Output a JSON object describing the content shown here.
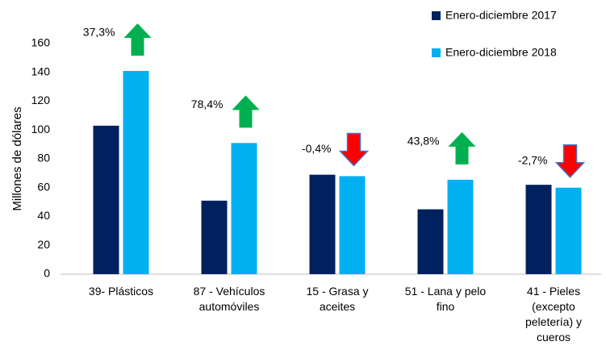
{
  "chart_data": {
    "type": "bar",
    "y_label": "Millones de dólares",
    "categories": [
      "39- Plásticos",
      "87 - Vehículos automóviles",
      "15 - Grasa y aceites",
      "51 - Lana y pelo fino",
      "41 - Pieles (excepto peletería) y cueros"
    ],
    "series": [
      {
        "name": "Enero-diciembre 2017",
        "color": "#002060",
        "values": [
          103,
          51,
          69,
          45,
          62
        ]
      },
      {
        "name": "Enero-diciembre 2018",
        "color": "#00b0f0",
        "values": [
          141,
          91,
          68,
          65.5,
          60
        ]
      }
    ],
    "annotations": [
      {
        "text": "37,3%",
        "arrow": "up",
        "color": "#00b050"
      },
      {
        "text": "78,4%",
        "arrow": "up",
        "color": "#00b050"
      },
      {
        "text": "-0,4%",
        "arrow": "down",
        "color": "#ff0000"
      },
      {
        "text": "43,8%",
        "arrow": "up",
        "color": "#00b050"
      },
      {
        "text": "-2,7%",
        "arrow": "down",
        "color": "#ff0000"
      }
    ],
    "ylim": [
      0,
      160
    ],
    "yticks": [
      0,
      20,
      40,
      60,
      80,
      100,
      120,
      140,
      160
    ],
    "grid": false
  }
}
